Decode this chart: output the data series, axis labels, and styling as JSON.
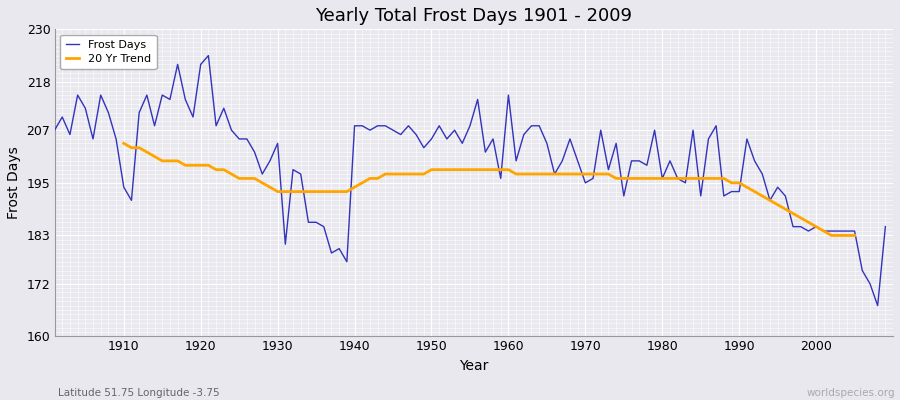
{
  "title": "Yearly Total Frost Days 1901 - 2009",
  "xlabel": "Year",
  "ylabel": "Frost Days",
  "subtitle": "Latitude 51.75 Longitude -3.75",
  "watermark": "worldspecies.org",
  "years": [
    1901,
    1902,
    1903,
    1904,
    1905,
    1906,
    1907,
    1908,
    1909,
    1910,
    1911,
    1912,
    1913,
    1914,
    1915,
    1916,
    1917,
    1918,
    1919,
    1920,
    1921,
    1922,
    1923,
    1924,
    1925,
    1926,
    1927,
    1928,
    1929,
    1930,
    1931,
    1932,
    1933,
    1934,
    1935,
    1936,
    1937,
    1938,
    1939,
    1940,
    1941,
    1942,
    1943,
    1944,
    1945,
    1946,
    1947,
    1948,
    1949,
    1950,
    1951,
    1952,
    1953,
    1954,
    1955,
    1956,
    1957,
    1958,
    1959,
    1960,
    1961,
    1962,
    1963,
    1964,
    1965,
    1966,
    1967,
    1968,
    1969,
    1970,
    1971,
    1972,
    1973,
    1974,
    1975,
    1976,
    1977,
    1978,
    1979,
    1980,
    1981,
    1982,
    1983,
    1984,
    1985,
    1986,
    1987,
    1988,
    1989,
    1990,
    1991,
    1992,
    1993,
    1994,
    1995,
    1996,
    1997,
    1998,
    1999,
    2000,
    2001,
    2002,
    2003,
    2004,
    2005,
    2006,
    2007,
    2008,
    2009
  ],
  "frost_days": [
    207,
    210,
    206,
    215,
    212,
    205,
    215,
    211,
    205,
    194,
    191,
    211,
    215,
    208,
    215,
    214,
    222,
    214,
    210,
    222,
    224,
    208,
    212,
    207,
    205,
    205,
    202,
    197,
    200,
    204,
    181,
    198,
    197,
    186,
    186,
    185,
    179,
    180,
    177,
    208,
    208,
    207,
    208,
    208,
    207,
    206,
    208,
    206,
    203,
    205,
    208,
    205,
    207,
    204,
    208,
    214,
    202,
    205,
    196,
    215,
    200,
    206,
    208,
    208,
    204,
    197,
    200,
    205,
    200,
    195,
    196,
    207,
    198,
    204,
    192,
    200,
    200,
    199,
    207,
    196,
    200,
    196,
    195,
    207,
    192,
    205,
    208,
    192,
    193,
    193,
    205,
    200,
    197,
    191,
    194,
    192,
    185,
    185,
    184,
    185,
    184,
    184,
    184,
    184,
    184,
    175,
    172,
    167,
    185
  ],
  "trend_years": [
    1910,
    1911,
    1912,
    1913,
    1914,
    1915,
    1916,
    1917,
    1918,
    1919,
    1920,
    1921,
    1922,
    1923,
    1924,
    1925,
    1926,
    1927,
    1928,
    1929,
    1930,
    1931,
    1932,
    1933,
    1934,
    1935,
    1936,
    1937,
    1938,
    1939,
    1940,
    1941,
    1942,
    1943,
    1944,
    1945,
    1946,
    1947,
    1948,
    1949,
    1950,
    1951,
    1952,
    1953,
    1954,
    1955,
    1956,
    1957,
    1958,
    1959,
    1960,
    1961,
    1962,
    1963,
    1964,
    1965,
    1966,
    1967,
    1968,
    1969,
    1970,
    1971,
    1972,
    1973,
    1974,
    1975,
    1976,
    1977,
    1978,
    1979,
    1980,
    1981,
    1982,
    1983,
    1984,
    1985,
    1986,
    1987,
    1988,
    1989,
    1990,
    1991,
    1992,
    1993,
    1994,
    1995,
    1996,
    1997,
    1998,
    1999,
    2000,
    2001,
    2002,
    2003,
    2004,
    2005
  ],
  "trend_values": [
    204,
    203,
    203,
    202,
    201,
    200,
    200,
    200,
    199,
    199,
    199,
    199,
    198,
    198,
    197,
    196,
    196,
    196,
    195,
    194,
    193,
    193,
    193,
    193,
    193,
    193,
    193,
    193,
    193,
    193,
    194,
    195,
    196,
    196,
    197,
    197,
    197,
    197,
    197,
    197,
    198,
    198,
    198,
    198,
    198,
    198,
    198,
    198,
    198,
    198,
    198,
    197,
    197,
    197,
    197,
    197,
    197,
    197,
    197,
    197,
    197,
    197,
    197,
    197,
    196,
    196,
    196,
    196,
    196,
    196,
    196,
    196,
    196,
    196,
    196,
    196,
    196,
    196,
    196,
    195,
    195,
    194,
    193,
    192,
    191,
    190,
    189,
    188,
    187,
    186,
    185,
    184,
    183,
    183,
    183,
    183
  ],
  "line_color": "#3333bb",
  "trend_color": "#ffa500",
  "background_color": "#e8e8ee",
  "grid_color": "#ffffff",
  "ylim": [
    160,
    230
  ],
  "yticks": [
    160,
    172,
    183,
    195,
    207,
    218,
    230
  ],
  "xlim": [
    1901,
    2010
  ]
}
